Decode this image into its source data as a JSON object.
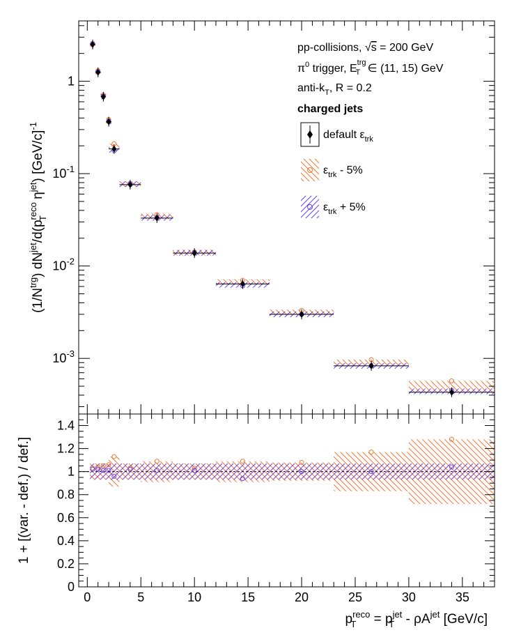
{
  "chart_data": [
    {
      "type": "scatter",
      "panel": "top",
      "ylabel": "(1/N^trg) dN^jet/d(p_T^reco η^jet) [GeV/c]^-1",
      "yscale": "log",
      "ylim": [
        0.00025,
        4.5
      ],
      "xlim": [
        -0.8,
        38
      ],
      "x_ticks": [
        "0",
        "5",
        "10",
        "15",
        "20",
        "25",
        "30",
        "35"
      ],
      "y_ticks": [
        "10^-3",
        "10^-2",
        "10^-1",
        "1"
      ],
      "legend_header": {
        "line1_prefix": "pp-collisions, ",
        "line1_sqrt": "√",
        "line1_s": "s",
        "line1_suffix": " = 200 GeV",
        "line2_pi": "π",
        "line2_pi_sup": "0",
        "line2_mid": " trigger, E",
        "line2_sup": "trg",
        "line2_sub": "T",
        "line2_suffix": " ∈ (11, 15) GeV",
        "line3_prefix": "anti-k",
        "line3_sub": "T",
        "line3_suffix": ", R = 0.2",
        "line4": "charged jets"
      },
      "series": [
        {
          "name": "default ε_trk",
          "label_main": "default ε",
          "label_sub": "trk",
          "color": "#000000",
          "marker": "filled-diamond",
          "x": [
            0.5,
            1.0,
            1.5,
            2.0,
            2.5,
            4.0,
            6.5,
            10.0,
            14.5,
            20.0,
            26.5,
            34.0
          ],
          "xerr": [
            0.25,
            0.25,
            0.25,
            0.25,
            0.5,
            1.0,
            1.5,
            2.0,
            2.5,
            3.0,
            3.5,
            4.0
          ],
          "y": [
            2.5,
            1.25,
            0.68,
            0.365,
            0.185,
            0.076,
            0.033,
            0.0138,
            0.0064,
            0.003,
            0.00083,
            0.00043
          ]
        },
        {
          "name": "ε_trk - 5%",
          "label_main": "ε",
          "label_sub": "trk",
          "label_suffix": " - 5%",
          "color": "#ee7733",
          "marker": "open-circle",
          "x": [
            0.5,
            1.0,
            1.5,
            2.0,
            2.5,
            4.0,
            6.5,
            10.0,
            14.5,
            20.0,
            26.5,
            34.0
          ],
          "xerr": [
            0.25,
            0.25,
            0.25,
            0.25,
            0.5,
            1.0,
            1.5,
            2.0,
            2.5,
            3.0,
            3.5,
            4.0
          ],
          "y": [
            2.56,
            1.3,
            0.71,
            0.385,
            0.21,
            0.078,
            0.036,
            0.0142,
            0.007,
            0.0033,
            0.00097,
            0.00057
          ]
        },
        {
          "name": "ε_trk + 5%",
          "label_main": "ε",
          "label_sub": "trk",
          "label_suffix": " + 5%",
          "color": "#6644ee",
          "marker": "open-circle",
          "x": [
            0.5,
            1.0,
            1.5,
            2.0,
            2.5,
            4.0,
            6.5,
            10.0,
            14.5,
            20.0,
            26.5,
            34.0
          ],
          "xerr": [
            0.25,
            0.25,
            0.25,
            0.25,
            0.5,
            1.0,
            1.5,
            2.0,
            2.5,
            3.0,
            3.5,
            4.0
          ],
          "y": [
            2.55,
            1.27,
            0.69,
            0.37,
            0.178,
            0.078,
            0.0335,
            0.014,
            0.0061,
            0.003,
            0.00083,
            0.00045
          ]
        }
      ]
    },
    {
      "type": "scatter",
      "panel": "ratio",
      "xlabel": "p_T^reco = p_T^jet - ρA^jet [GeV/c]",
      "ylabel": "1 + [(var. - def.) / def.]",
      "ylim": [
        0,
        1.5
      ],
      "xlim": [
        -0.8,
        38
      ],
      "y_ticks": [
        "0",
        "0.2",
        "0.4",
        "0.6",
        "0.8",
        "1",
        "1.2",
        "1.4"
      ],
      "reference_line": 1,
      "series": [
        {
          "name": "ε_trk - 5%",
          "color": "#ee7733",
          "x": [
            0.5,
            1.0,
            1.5,
            2.0,
            2.5,
            4.0,
            6.5,
            10.0,
            14.5,
            20.0,
            26.5,
            34.0
          ],
          "xerr": [
            0.25,
            0.25,
            0.25,
            0.25,
            0.5,
            1.0,
            1.5,
            2.0,
            2.5,
            3.0,
            3.5,
            4.0
          ],
          "y": [
            1.03,
            1.04,
            1.05,
            1.06,
            1.13,
            1.03,
            1.09,
            1.03,
            1.09,
            1.08,
            1.17,
            1.28
          ]
        },
        {
          "name": "ε_trk + 5%",
          "color": "#6644ee",
          "x": [
            0.5,
            1.0,
            1.5,
            2.0,
            2.5,
            4.0,
            6.5,
            10.0,
            14.5,
            20.0,
            26.5,
            34.0
          ],
          "xerr": [
            0.25,
            0.25,
            0.25,
            0.25,
            0.5,
            1.0,
            1.5,
            2.0,
            2.5,
            3.0,
            3.5,
            4.0
          ],
          "y": [
            1.02,
            1.02,
            1.01,
            1.01,
            0.96,
            1.02,
            1.01,
            1.01,
            0.94,
            1.0,
            1.0,
            1.04
          ]
        }
      ]
    }
  ]
}
